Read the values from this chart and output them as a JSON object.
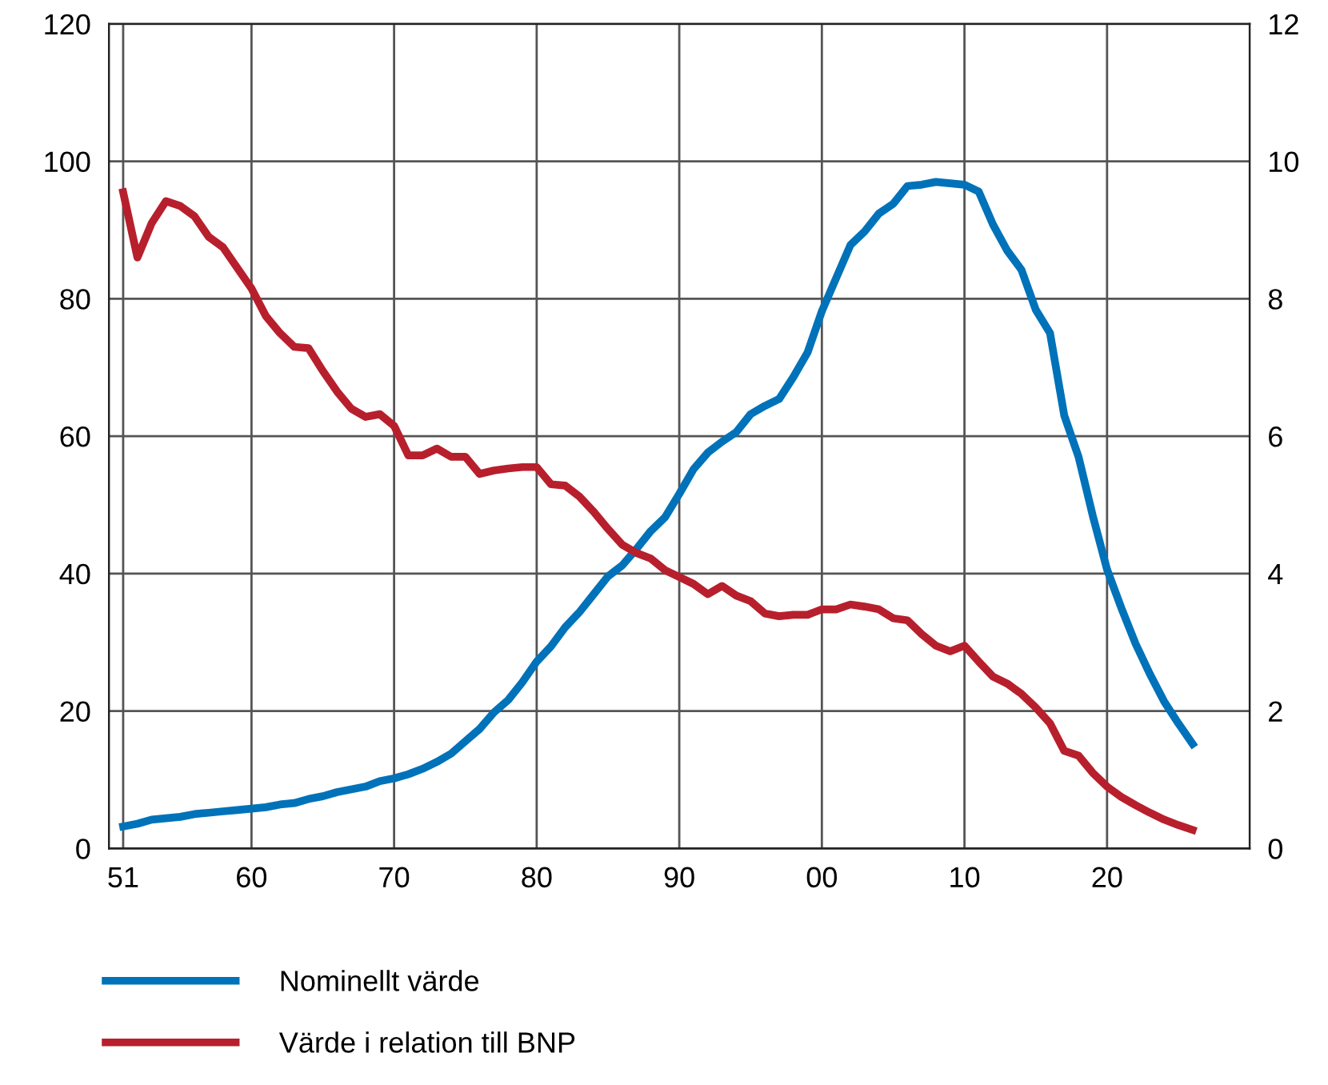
{
  "chart_data": {
    "type": "line",
    "x": [
      1951,
      1952,
      1953,
      1954,
      1955,
      1956,
      1957,
      1958,
      1959,
      1960,
      1961,
      1962,
      1963,
      1964,
      1965,
      1966,
      1967,
      1968,
      1969,
      1970,
      1971,
      1972,
      1973,
      1974,
      1975,
      1976,
      1977,
      1978,
      1979,
      1980,
      1981,
      1982,
      1983,
      1984,
      1985,
      1986,
      1987,
      1988,
      1989,
      1990,
      1991,
      1992,
      1993,
      1994,
      1995,
      1996,
      1997,
      1998,
      1999,
      2000,
      2001,
      2002,
      2003,
      2004,
      2005,
      2006,
      2007,
      2008,
      2009,
      2010,
      2011,
      2012,
      2013,
      2014,
      2015,
      2016,
      2017,
      2018,
      2019,
      2020,
      2021,
      2022,
      2023,
      2024,
      2025,
      2026
    ],
    "series": [
      {
        "name": "Nominellt värde",
        "color": "#0072b9",
        "values": [
          3.2,
          3.6,
          4.2,
          4.4,
          4.6,
          5.0,
          5.2,
          5.4,
          5.6,
          5.8,
          6.0,
          6.4,
          6.6,
          7.2,
          7.6,
          8.2,
          8.6,
          9.0,
          9.8,
          10.2,
          10.8,
          11.6,
          12.6,
          13.8,
          15.6,
          17.4,
          19.8,
          21.6,
          24.2,
          27.2,
          29.4,
          32.2,
          34.4,
          37,
          39.6,
          41.2,
          43.6,
          46.2,
          48.2,
          51.6,
          55.2,
          57.6,
          59.2,
          60.6,
          63.2,
          64.4,
          65.4,
          68.6,
          72.2,
          78.2,
          83,
          87.8,
          89.8,
          92.4,
          93.8,
          96.4,
          96.6,
          97,
          96.8,
          96.6,
          95.6,
          90.8,
          87,
          84.2,
          78.4,
          75,
          63,
          57,
          48.4,
          40.6,
          35,
          29.8,
          25.4,
          21.4,
          18.2,
          15.2
        ]
      },
      {
        "name": "Värde i relation till BNP",
        "color": "#b81f2d",
        "axis": "y2",
        "values": [
          9.55,
          8.6,
          9.1,
          9.42,
          9.35,
          9.2,
          8.9,
          8.75,
          8.45,
          8.15,
          7.75,
          7.5,
          7.3,
          7.28,
          6.95,
          6.65,
          6.4,
          6.28,
          6.32,
          6.15,
          5.72,
          5.72,
          5.82,
          5.7,
          5.7,
          5.45,
          5.5,
          5.53,
          5.55,
          5.55,
          5.3,
          5.28,
          5.12,
          4.9,
          4.65,
          4.42,
          4.3,
          4.22,
          4.05,
          3.95,
          3.85,
          3.7,
          3.82,
          3.68,
          3.6,
          3.42,
          3.38,
          3.4,
          3.4,
          3.48,
          3.48,
          3.55,
          3.52,
          3.48,
          3.35,
          3.32,
          3.12,
          2.95,
          2.87,
          2.95,
          2.72,
          2.5,
          2.4,
          2.25,
          2.05,
          1.82,
          1.42,
          1.35,
          1.1,
          0.9,
          0.75,
          0.63,
          0.52,
          0.42,
          0.34,
          0.27
        ]
      }
    ],
    "xlim": [
      1950,
      2030
    ],
    "xticks": [
      {
        "value": 1951,
        "label": "51"
      },
      {
        "value": 1960,
        "label": "60"
      },
      {
        "value": 1970,
        "label": "70"
      },
      {
        "value": 1980,
        "label": "80"
      },
      {
        "value": 1990,
        "label": "90"
      },
      {
        "value": 2000,
        "label": "00"
      },
      {
        "value": 2010,
        "label": "10"
      },
      {
        "value": 2020,
        "label": "20"
      }
    ],
    "ylim": [
      0,
      120
    ],
    "yticks": [
      0,
      20,
      40,
      60,
      80,
      100,
      120
    ],
    "y2lim": [
      0,
      12
    ],
    "y2ticks": [
      0,
      2,
      4,
      6,
      8,
      10,
      12
    ],
    "grid": true,
    "legend": "bottom",
    "marker": "none",
    "line_style": "solid"
  }
}
